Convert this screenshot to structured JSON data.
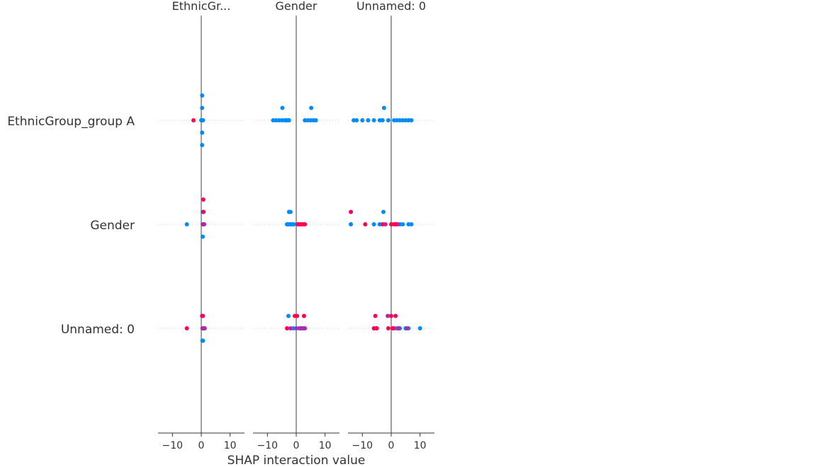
{
  "chart_data": {
    "type": "scatter",
    "title": "",
    "xlabel": "SHAP interaction value",
    "row_labels": [
      "EthnicGroup_group A",
      "Gender",
      "Unnamed: 0"
    ],
    "columns": [
      {
        "title": "EthnicGr...",
        "xlim": [
          -15,
          15
        ],
        "ticks": [
          -10,
          0,
          10
        ]
      },
      {
        "title": "Gender",
        "xlim": [
          -15,
          15
        ],
        "ticks": [
          -10,
          0,
          10
        ]
      },
      {
        "title": "Unnamed: 0",
        "xlim": [
          -15,
          15
        ],
        "ticks": [
          -10,
          0,
          10
        ]
      }
    ],
    "colors": {
      "low": "#008bfb",
      "high": "#ff0052",
      "mid": "#b02aa8",
      "zero_line": "#888888",
      "axis": "#333333",
      "guide": "#cccccc"
    },
    "panels": [
      [
        {
          "points": [
            [
              0.3,
              2
            ],
            [
              0.3,
              1
            ],
            [
              0.3,
              0
            ],
            [
              0.3,
              -1
            ],
            [
              0.3,
              -2
            ],
            [
              0.6,
              0
            ],
            [
              0,
              0
            ]
          ],
          "high": [
            [
              -2.7,
              0
            ]
          ]
        },
        {
          "points": [
            [
              -8,
              0
            ],
            [
              -7,
              0
            ],
            [
              -6,
              0
            ],
            [
              -5,
              0
            ],
            [
              -4,
              0
            ],
            [
              -3.5,
              0
            ],
            [
              -3,
              0
            ],
            [
              -2.5,
              0
            ],
            [
              3,
              0
            ],
            [
              4,
              0
            ],
            [
              5,
              0
            ],
            [
              6,
              0
            ],
            [
              6.8,
              0
            ],
            [
              -4.8,
              1
            ],
            [
              5.2,
              1
            ]
          ],
          "high": []
        },
        {
          "points": [
            [
              -13,
              0
            ],
            [
              -12,
              0
            ],
            [
              -10,
              0
            ],
            [
              -8,
              0
            ],
            [
              -6,
              0
            ],
            [
              -4,
              0
            ],
            [
              -3,
              0
            ],
            [
              -1,
              0
            ],
            [
              1,
              0
            ],
            [
              2,
              0
            ],
            [
              3,
              0
            ],
            [
              4,
              0
            ],
            [
              5,
              0
            ],
            [
              6,
              0
            ],
            [
              7,
              0
            ],
            [
              -2.5,
              1
            ]
          ],
          "high": []
        }
      ],
      [
        {
          "points": [
            [
              -5,
              0
            ],
            [
              0.5,
              0
            ],
            [
              0.5,
              -1
            ],
            [
              0.5,
              1
            ]
          ],
          "high": [
            [
              0.7,
              2
            ],
            [
              0.8,
              1
            ]
          ],
          "mid": [
            [
              0.6,
              0
            ],
            [
              0.8,
              0
            ],
            [
              1,
              0
            ]
          ]
        },
        {
          "points": [
            [
              -2.5,
              1
            ],
            [
              -2,
              1
            ],
            [
              -3.2,
              0
            ],
            [
              -2.8,
              0
            ],
            [
              -2.3,
              0
            ],
            [
              -1.8,
              0
            ],
            [
              -1.3,
              0
            ],
            [
              -0.8,
              0
            ]
          ],
          "high": [
            [
              0.5,
              0
            ],
            [
              1,
              0
            ],
            [
              1.5,
              0
            ],
            [
              2,
              0
            ],
            [
              2.5,
              0
            ],
            [
              3,
              0
            ]
          ]
        },
        {
          "points": [
            [
              -2.7,
              1
            ],
            [
              -14,
              0
            ],
            [
              -6,
              0
            ],
            [
              -4,
              0
            ],
            [
              2,
              0
            ],
            [
              3,
              0
            ],
            [
              4,
              0
            ],
            [
              6,
              0
            ],
            [
              7,
              0
            ]
          ],
          "high": [
            [
              -14,
              1
            ],
            [
              -9,
              0
            ],
            [
              -3,
              0
            ],
            [
              0,
              0
            ],
            [
              1,
              0
            ],
            [
              1.5,
              0
            ]
          ],
          "mid": [
            [
              -2,
              0
            ],
            [
              2.2,
              0
            ]
          ]
        }
      ],
      [
        {
          "points": [
            [
              0.4,
              -1
            ],
            [
              0.6,
              -1
            ]
          ],
          "high": [
            [
              -5,
              0
            ],
            [
              0.3,
              1
            ]
          ],
          "mid": [
            [
              0.6,
              1
            ],
            [
              0.4,
              0
            ],
            [
              0.8,
              0
            ],
            [
              1.2,
              0
            ]
          ]
        },
        {
          "points": [
            [
              -2.7,
              1
            ],
            [
              -1,
              0
            ],
            [
              1,
              0
            ],
            [
              2.5,
              0
            ]
          ],
          "high": [
            [
              -0.5,
              1
            ],
            [
              0.3,
              1
            ],
            [
              2.7,
              1
            ],
            [
              -3.2,
              0
            ]
          ],
          "mid": [
            [
              -2,
              0
            ],
            [
              0,
              0
            ],
            [
              1.5,
              0
            ],
            [
              2,
              0
            ],
            [
              3,
              0
            ]
          ]
        },
        {
          "points": [
            [
              5,
              0
            ],
            [
              6,
              0
            ],
            [
              10,
              0
            ],
            [
              2,
              0
            ],
            [
              3,
              0
            ]
          ],
          "high": [
            [
              -5.5,
              1
            ],
            [
              0,
              1
            ],
            [
              1.5,
              1
            ],
            [
              -6,
              0
            ],
            [
              -5,
              0
            ],
            [
              -1,
              0
            ],
            [
              0.5,
              0
            ]
          ],
          "mid": [
            [
              -1.2,
              1
            ],
            [
              -5.2,
              0
            ],
            [
              1,
              0
            ],
            [
              2.5,
              0
            ],
            [
              5.5,
              0
            ]
          ]
        }
      ]
    ]
  }
}
